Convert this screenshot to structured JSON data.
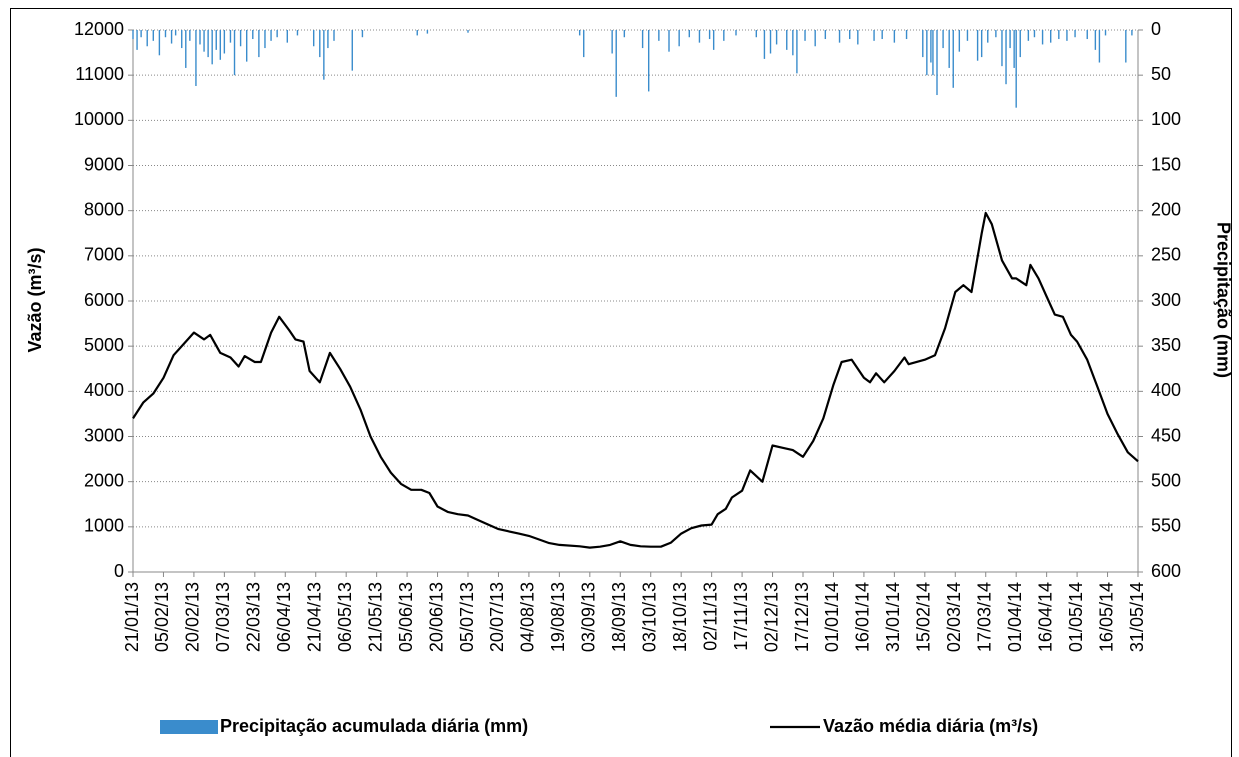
{
  "chart_data": {
    "type": "combo",
    "ylabel": "Vazão (m³/s)",
    "y2label": "Precipitação (mm)",
    "xlim": [
      "21/01/13",
      "31/05/14"
    ],
    "xticks": [
      "21/01/13",
      "05/02/13",
      "20/02/13",
      "07/03/13",
      "22/03/13",
      "06/04/13",
      "21/04/13",
      "06/05/13",
      "21/05/13",
      "05/06/13",
      "20/06/13",
      "05/07/13",
      "20/07/13",
      "04/08/13",
      "19/08/13",
      "03/09/13",
      "18/09/13",
      "03/10/13",
      "18/10/13",
      "02/11/13",
      "17/11/13",
      "02/12/13",
      "17/12/13",
      "01/01/14",
      "16/01/14",
      "31/01/14",
      "15/02/14",
      "02/03/14",
      "17/03/14",
      "01/04/14",
      "16/04/14",
      "01/05/14",
      "16/05/14",
      "31/05/14"
    ],
    "ylim": [
      0,
      12000
    ],
    "yticks": [
      0,
      1000,
      2000,
      3000,
      4000,
      5000,
      6000,
      7000,
      8000,
      9000,
      10000,
      11000,
      12000
    ],
    "y2lim": [
      0,
      600
    ],
    "y2ticks": [
      0,
      50,
      100,
      150,
      200,
      250,
      300,
      350,
      400,
      450,
      500,
      550,
      600
    ],
    "y2_inverted": true,
    "grid": true,
    "legend": "bottom",
    "series": [
      {
        "name": "Precipitação acumulada diária (mm)",
        "type": "bar",
        "axis": "y2",
        "color": "#3a8ccc",
        "x": [
          "21/01/13",
          "23/01/13",
          "25/01/13",
          "28/01/13",
          "31/01/13",
          "03/02/13",
          "06/02/13",
          "09/02/13",
          "11/02/13",
          "14/02/13",
          "16/02/13",
          "18/02/13",
          "21/02/13",
          "23/02/13",
          "25/02/13",
          "27/02/13",
          "01/03/13",
          "03/03/13",
          "05/03/13",
          "07/03/13",
          "10/03/13",
          "12/03/13",
          "15/03/13",
          "18/03/13",
          "21/03/13",
          "24/03/13",
          "27/03/13",
          "30/03/13",
          "02/04/13",
          "07/04/13",
          "12/04/13",
          "20/04/13",
          "23/04/13",
          "25/04/13",
          "27/04/13",
          "30/04/13",
          "09/05/13",
          "14/05/13",
          "10/06/13",
          "15/06/13",
          "05/07/13",
          "29/08/13",
          "31/08/13",
          "14/09/13",
          "16/09/13",
          "20/09/13",
          "29/09/13",
          "02/10/13",
          "07/10/13",
          "12/10/13",
          "17/10/13",
          "22/10/13",
          "27/10/13",
          "01/11/13",
          "03/11/13",
          "08/11/13",
          "14/11/13",
          "24/11/13",
          "28/11/13",
          "01/12/13",
          "04/12/13",
          "09/12/13",
          "12/12/13",
          "14/12/13",
          "18/12/13",
          "23/12/13",
          "28/12/13",
          "04/01/14",
          "09/01/14",
          "13/01/14",
          "21/01/14",
          "25/01/14",
          "31/01/14",
          "06/02/14",
          "14/02/14",
          "16/02/14",
          "18/02/14",
          "19/02/14",
          "21/02/14",
          "24/02/14",
          "27/02/14",
          "01/03/14",
          "04/03/14",
          "08/03/14",
          "13/03/14",
          "15/03/14",
          "18/03/14",
          "22/03/14",
          "25/03/14",
          "27/03/14",
          "29/03/14",
          "31/03/14",
          "01/04/14",
          "03/04/14",
          "07/04/14",
          "10/04/14",
          "14/04/14",
          "18/04/14",
          "22/04/14",
          "26/04/14",
          "30/04/14",
          "06/05/14",
          "10/05/14",
          "12/05/14",
          "15/05/14",
          "25/05/14",
          "28/05/14"
        ],
        "values": [
          10,
          22,
          8,
          18,
          12,
          28,
          8,
          15,
          6,
          20,
          42,
          12,
          62,
          16,
          24,
          30,
          38,
          22,
          33,
          26,
          14,
          50,
          18,
          35,
          10,
          30,
          20,
          12,
          8,
          14,
          6,
          18,
          30,
          55,
          20,
          12,
          45,
          8,
          6,
          4,
          3,
          6,
          30,
          26,
          74,
          8,
          20,
          68,
          12,
          24,
          18,
          8,
          14,
          10,
          22,
          12,
          6,
          8,
          32,
          26,
          16,
          22,
          28,
          48,
          12,
          18,
          10,
          14,
          10,
          16,
          12,
          10,
          14,
          10,
          30,
          50,
          36,
          50,
          72,
          20,
          42,
          64,
          24,
          12,
          34,
          30,
          14,
          8,
          40,
          60,
          20,
          42,
          86,
          30,
          12,
          8,
          16,
          14,
          10,
          12,
          8,
          10,
          22,
          36,
          6,
          36,
          6
        ]
      },
      {
        "name": "Vazão média diária (m³/s)",
        "type": "line",
        "color": "#000000",
        "x": [
          "21/01/13",
          "26/01/13",
          "31/01/13",
          "05/02/13",
          "10/02/13",
          "15/02/13",
          "20/02/13",
          "25/02/13",
          "28/02/13",
          "05/03/13",
          "10/03/13",
          "14/03/13",
          "17/03/13",
          "22/03/13",
          "25/03/13",
          "30/03/13",
          "03/04/13",
          "08/04/13",
          "11/04/13",
          "15/04/13",
          "18/04/13",
          "23/04/13",
          "28/04/13",
          "03/05/13",
          "08/05/13",
          "13/05/13",
          "18/05/13",
          "23/05/13",
          "28/05/13",
          "02/06/13",
          "07/06/13",
          "12/06/13",
          "16/06/13",
          "20/06/13",
          "25/06/13",
          "30/06/13",
          "05/07/13",
          "10/07/13",
          "15/07/13",
          "20/07/13",
          "30/07/13",
          "04/08/13",
          "09/08/13",
          "14/08/13",
          "19/08/13",
          "29/08/13",
          "03/09/13",
          "08/09/13",
          "13/09/13",
          "18/09/13",
          "23/09/13",
          "28/09/13",
          "03/10/13",
          "08/10/13",
          "13/10/13",
          "18/10/13",
          "23/10/13",
          "28/10/13",
          "02/11/13",
          "05/11/13",
          "09/11/13",
          "12/11/13",
          "17/11/13",
          "21/11/13",
          "27/11/13",
          "02/12/13",
          "07/12/13",
          "12/12/13",
          "17/12/13",
          "22/12/13",
          "27/12/13",
          "01/01/14",
          "05/01/14",
          "10/01/14",
          "16/01/14",
          "19/01/14",
          "22/01/14",
          "26/01/14",
          "31/01/14",
          "05/02/14",
          "07/02/14",
          "15/02/14",
          "20/02/14",
          "25/02/14",
          "02/03/14",
          "06/03/14",
          "10/03/14",
          "15/03/14",
          "17/03/14",
          "20/03/14",
          "25/03/14",
          "30/03/14",
          "01/04/14",
          "06/04/14",
          "08/04/14",
          "12/04/14",
          "16/04/14",
          "20/04/14",
          "24/04/14",
          "28/04/14",
          "01/05/14",
          "06/05/14",
          "11/05/14",
          "16/05/14",
          "21/05/14",
          "26/05/14",
          "31/05/14"
        ],
        "values": [
          3400,
          3750,
          3950,
          4300,
          4800,
          5050,
          5300,
          5150,
          5250,
          4850,
          4750,
          4550,
          4780,
          4650,
          4650,
          5300,
          5650,
          5350,
          5150,
          5100,
          4450,
          4200,
          4850,
          4500,
          4100,
          3600,
          3000,
          2550,
          2200,
          1950,
          1820,
          1820,
          1750,
          1450,
          1330,
          1280,
          1250,
          1150,
          1050,
          950,
          850,
          800,
          720,
          640,
          600,
          570,
          540,
          560,
          600,
          680,
          600,
          570,
          560,
          560,
          650,
          850,
          970,
          1030,
          1050,
          1280,
          1400,
          1650,
          1800,
          2250,
          2000,
          2800,
          2750,
          2700,
          2550,
          2900,
          3400,
          4150,
          4650,
          4700,
          4300,
          4200,
          4400,
          4200,
          4450,
          4750,
          4600,
          4700,
          4800,
          5400,
          6200,
          6350,
          6200,
          7500,
          7950,
          7700,
          6900,
          6500,
          6500,
          6350,
          6800,
          6500,
          6100,
          5700,
          5650,
          5250,
          5100,
          4700,
          4100,
          3500,
          3050,
          2650,
          2450
        ]
      }
    ]
  }
}
